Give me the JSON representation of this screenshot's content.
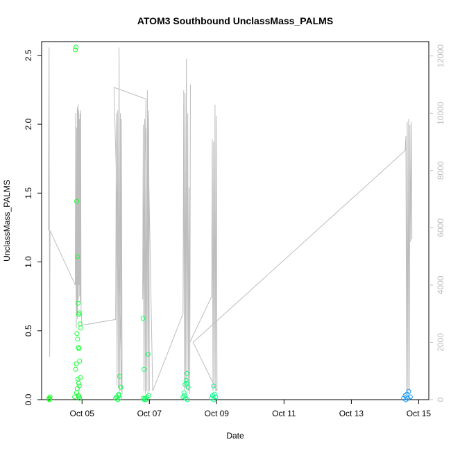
{
  "chart_data": {
    "type": "scatter",
    "title": "ATOM3 Southbound UnclassMass_PALMS",
    "xlabel": "Date",
    "ylabel": "UnclassMass_PALMS",
    "x_ticks": [
      "Oct 05",
      "Oct 07",
      "Oct 09",
      "Oct 11",
      "Oct 13",
      "Oct 15"
    ],
    "x_tick_values": [
      5,
      7,
      9,
      11,
      13,
      15
    ],
    "xlim": [
      3.8,
      15.3
    ],
    "ylim": [
      0,
      2.6
    ],
    "y_ticks": [
      "0.0",
      "0.5",
      "1.0",
      "1.5",
      "2.0",
      "2.5"
    ],
    "y_tick_values": [
      0,
      0.5,
      1.0,
      1.5,
      2.0,
      2.5
    ],
    "y2lim": [
      0,
      12500
    ],
    "y2_ticks": [
      "0",
      "2000",
      "4000",
      "6000",
      "8000",
      "10000",
      "12000"
    ],
    "y2_tick_values": [
      0,
      2000,
      4000,
      6000,
      8000,
      10000,
      12000
    ],
    "grid": false,
    "colors": {
      "altitude_line": "#bdbdbd",
      "points_gradient_start": "#1aff1a",
      "points_gradient_mid": "#00ff99",
      "points_gradient_end": "#1a8cff"
    },
    "series": [
      {
        "kind": "points",
        "x": [
          4.02,
          4.03,
          4.05,
          4.04,
          4.78,
          4.8,
          4.82,
          4.84,
          4.86,
          4.88,
          4.9,
          4.92,
          4.94,
          4.96,
          4.85,
          4.87,
          4.89,
          4.91,
          4.93,
          4.83,
          4.81,
          4.95,
          4.88,
          4.9,
          4.92,
          4.86,
          4.84,
          4.89,
          4.91,
          4.93,
          6.0,
          6.03,
          6.06,
          6.09,
          6.12,
          6.15,
          6.1,
          6.12,
          6.81,
          6.84,
          6.87,
          6.9,
          6.93,
          6.96,
          6.82,
          6.85,
          6.98,
          8.0,
          8.03,
          8.06,
          8.09,
          8.12,
          8.15,
          8.05,
          8.08,
          8.11,
          8.13,
          8.85,
          8.88,
          8.91,
          8.94,
          8.97,
          8.92,
          14.55,
          14.6,
          14.65,
          14.7,
          14.75,
          14.62,
          14.68
        ],
        "y": [
          0.01,
          0.0,
          0.02,
          0.005,
          0.02,
          2.54,
          2.56,
          1.44,
          1.04,
          0.7,
          0.62,
          0.63,
          0.55,
          0.52,
          0.48,
          0.44,
          0.38,
          0.37,
          0.28,
          0.26,
          0.22,
          0.16,
          0.15,
          0.12,
          0.1,
          0.08,
          0.05,
          0.03,
          0.02,
          0.01,
          0.01,
          0.02,
          0.0,
          0.04,
          0.17,
          0.09,
          0.03,
          0.01,
          0.59,
          0.22,
          0.01,
          0.0,
          0.02,
          0.33,
          0.01,
          0.0,
          0.03,
          0.02,
          0.05,
          0.11,
          0.14,
          0.19,
          0.09,
          0.03,
          0.01,
          0.12,
          0.0,
          0.01,
          0.03,
          0.1,
          0.04,
          0.02,
          0.0,
          0.01,
          0.03,
          0.04,
          0.06,
          0.02,
          0.0,
          0.01
        ]
      },
      {
        "kind": "altitude_line",
        "x": [
          4.0,
          4.02,
          4.03,
          4.04,
          4.05,
          4.8,
          4.81,
          4.82,
          4.83,
          4.84,
          4.85,
          4.86,
          4.87,
          4.88,
          4.89,
          4.9,
          4.91,
          4.92,
          4.93,
          4.94,
          4.95,
          4.96,
          4.97,
          5.0,
          6.0,
          6.02,
          6.04,
          6.06,
          6.08,
          6.1,
          6.12,
          6.14,
          6.16,
          6.17,
          6.19,
          5.95,
          6.9,
          6.8,
          6.82,
          6.84,
          6.86,
          6.88,
          6.9,
          6.92,
          6.94,
          6.96,
          6.98,
          7.0,
          6.95,
          7.1,
          8.0,
          8.02,
          8.04,
          8.06,
          8.08,
          8.1,
          8.12,
          8.14,
          8.16,
          8.18,
          8.2,
          8.22,
          8.2,
          8.85,
          8.87,
          8.89,
          8.91,
          8.93,
          8.95,
          8.97,
          8.99,
          9.01,
          8.3,
          14.6,
          14.62,
          14.64,
          14.66,
          14.68,
          14.7,
          14.72,
          14.74,
          14.76,
          14.78,
          14.8
        ],
        "y2": [
          5900,
          12300,
          5800,
          1500,
          5900,
          4000,
          10000,
          4200,
          2500,
          9500,
          3000,
          10200,
          2800,
          10300,
          3500,
          10100,
          4000,
          9800,
          3600,
          10000,
          3400,
          10100,
          3200,
          2600,
          2800,
          10000,
          500,
          10100,
          400,
          12300,
          300,
          10000,
          300,
          9800,
          200,
          10900,
          10500,
          3500,
          9600,
          300,
          9800,
          200,
          9500,
          300,
          10800,
          200,
          10100,
          300,
          9900,
          300,
          3000,
          10800,
          300,
          10700,
          400,
          11900,
          300,
          10000,
          300,
          7400,
          200,
          11000,
          2000,
          3600,
          9100,
          300,
          9000,
          400,
          10300,
          300,
          9900,
          300,
          2000,
          8700,
          9200,
          300,
          9700,
          200,
          9800,
          300,
          9600,
          5500,
          9700,
          5600
        ]
      }
    ]
  }
}
